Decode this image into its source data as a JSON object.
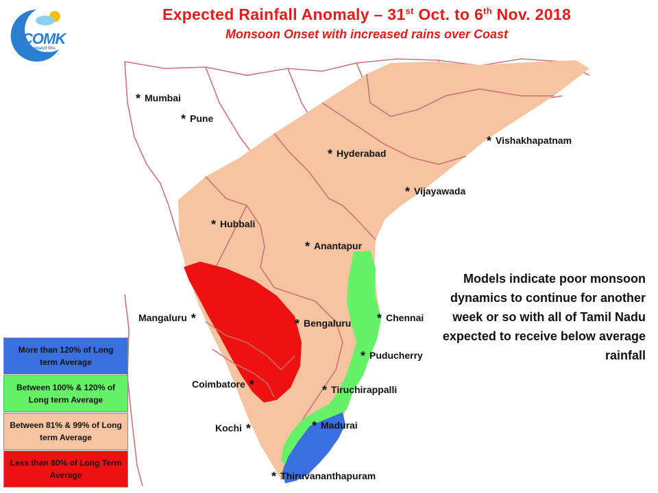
{
  "header": {
    "title_main": "Expected Rainfall Anomaly – 31",
    "title_sup1": "st",
    "title_mid": " Oct. to 6",
    "title_sup2": "th",
    "title_end": " Nov. 2018",
    "subtitle": "Monsoon Onset with increased rains over Coast"
  },
  "logo": {
    "brand": "COMK",
    "tagline": "Chennaiyil Oru Mazhaikaalam"
  },
  "colors": {
    "above_120": "#3a6fe0",
    "between_100_120": "#66f266",
    "between_81_99": "#f6c4a0",
    "below_80": "#ee1111",
    "border": "#c8737a"
  },
  "cities": {
    "mumbai": "Mumbai",
    "pune": "Pune",
    "hyderabad": "Hyderabad",
    "vishakhapatnam": "Vishakhapatnam",
    "vijayawada": "Vijayawada",
    "hubbali": "Hubbali",
    "anantapur": "Anantapur",
    "mangaluru": "Mangaluru",
    "bengaluru": "Bengaluru",
    "chennai": "Chennai",
    "puducherry": "Puducherry",
    "coimbatore": "Coimbatore",
    "tiruchirappalli": "Tiruchirappalli",
    "kochi": "Kochi",
    "madurai": "Madurai",
    "thiruvananthapuram": "Thiruvananthapuram"
  },
  "note": "Models indicate poor monsoon dynamics to continue for another week or so with all of Tamil Nadu expected to receive below average rainfall",
  "legend": [
    {
      "label": "More than 120% of Long term Average",
      "color": "#3a6fe0"
    },
    {
      "label": "Between 100% & 120% of Long term Average",
      "color": "#66f266"
    },
    {
      "label": "Between 81% & 99% of Long term Average",
      "color": "#f6c4a0"
    },
    {
      "label": "Less than 80% of Long Term Average",
      "color": "#ee1111"
    }
  ]
}
